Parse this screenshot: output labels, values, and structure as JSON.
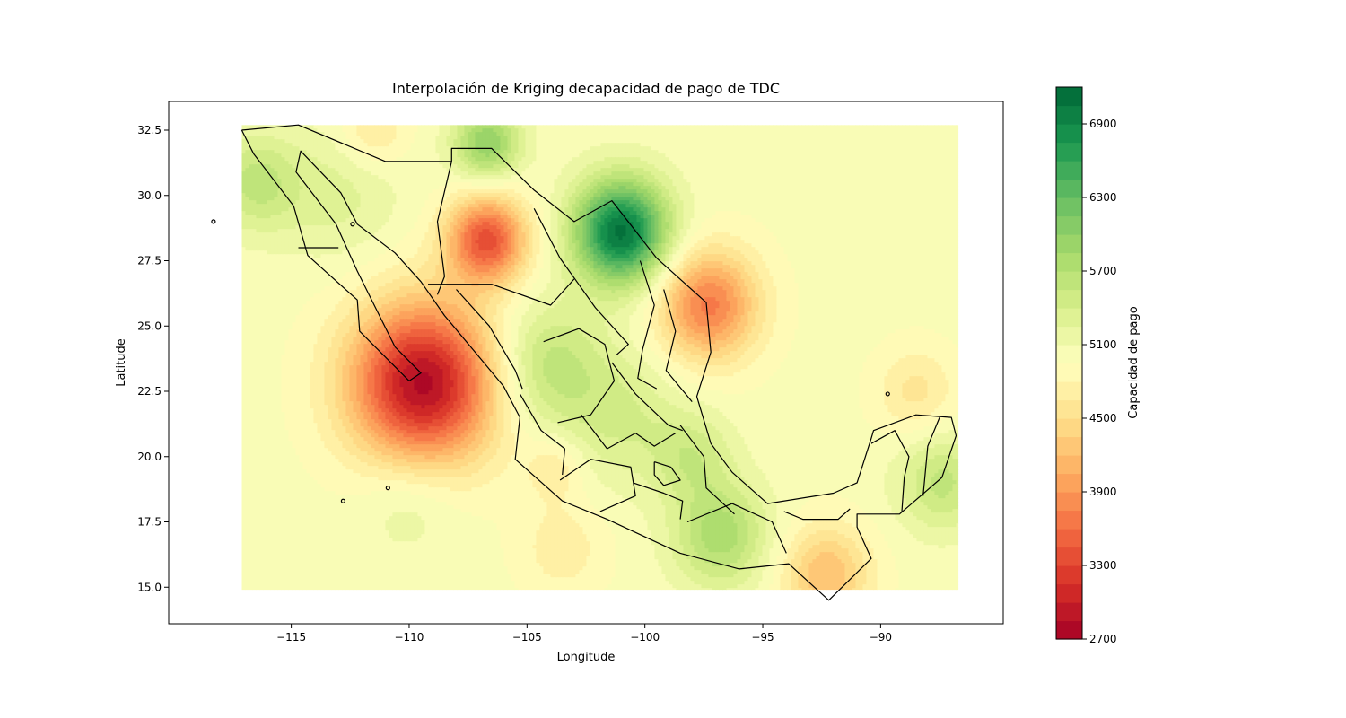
{
  "title": "Interpolación de Kriging decapacidad de pago de TDC",
  "axes": {
    "xlabel": "Longitude",
    "ylabel": "Latitude",
    "xlim": [
      -120.2,
      -84.8
    ],
    "ylim": [
      13.6,
      33.6
    ],
    "xticks": [
      -115,
      -110,
      -105,
      -100,
      -95,
      -90
    ],
    "xtick_labels": [
      "−115",
      "−110",
      "−105",
      "−100",
      "−95",
      "−90"
    ],
    "yticks": [
      15.0,
      17.5,
      20.0,
      22.5,
      25.0,
      27.5,
      30.0,
      32.5
    ],
    "ytick_labels": [
      "15.0",
      "17.5",
      "20.0",
      "22.5",
      "25.0",
      "27.5",
      "30.0",
      "32.5"
    ]
  },
  "grid_extent": {
    "lon": [
      -117.1,
      -86.7
    ],
    "lat": [
      14.9,
      32.7
    ]
  },
  "colorbar": {
    "label": "Capacidad de pago",
    "colormap": "RdYlGn",
    "range": [
      2700,
      7200
    ],
    "levels": 30,
    "ticks": [
      2700,
      3300,
      3900,
      4500,
      5100,
      5700,
      6300,
      6900
    ],
    "tick_labels": [
      "2700",
      "3300",
      "3900",
      "4500",
      "5100",
      "5700",
      "6300",
      "6900"
    ]
  },
  "field": {
    "base_value": 5000,
    "sources": [
      {
        "lon": -109.4,
        "lat": 22.8,
        "amp": -2200,
        "spread": 2.2
      },
      {
        "lon": -106.7,
        "lat": 28.3,
        "amp": -1600,
        "spread": 1.2
      },
      {
        "lon": -97.3,
        "lat": 25.8,
        "amp": -1300,
        "spread": 1.5
      },
      {
        "lon": -101.0,
        "lat": 28.6,
        "amp": 2100,
        "spread": 1.4
      },
      {
        "lon": -106.7,
        "lat": 32.0,
        "amp": 1000,
        "spread": 1.0
      },
      {
        "lon": -96.8,
        "lat": 17.0,
        "amp": 800,
        "spread": 1.4
      },
      {
        "lon": -104.2,
        "lat": 23.5,
        "amp": 650,
        "spread": 1.7
      },
      {
        "lon": -101.0,
        "lat": 21.5,
        "amp": 400,
        "spread": 1.8
      },
      {
        "lon": -92.3,
        "lat": 15.5,
        "amp": -800,
        "spread": 1.3
      },
      {
        "lon": -87.4,
        "lat": 19.0,
        "amp": 600,
        "spread": 1.3
      },
      {
        "lon": -116.5,
        "lat": 30.5,
        "amp": 600,
        "spread": 1.3
      },
      {
        "lon": -113.0,
        "lat": 30.0,
        "amp": 300,
        "spread": 1.8
      },
      {
        "lon": -111.5,
        "lat": 32.5,
        "amp": -400,
        "spread": 1.0
      },
      {
        "lon": -103.8,
        "lat": 19.6,
        "amp": -350,
        "spread": 0.9
      },
      {
        "lon": -103.5,
        "lat": 16.5,
        "amp": -300,
        "spread": 1.3
      },
      {
        "lon": -98.0,
        "lat": 20.0,
        "amp": 450,
        "spread": 1.2
      },
      {
        "lon": -88.5,
        "lat": 22.5,
        "amp": -400,
        "spread": 1.2
      },
      {
        "lon": -110.0,
        "lat": 18.5,
        "amp": 300,
        "spread": 1.5
      }
    ]
  }
}
